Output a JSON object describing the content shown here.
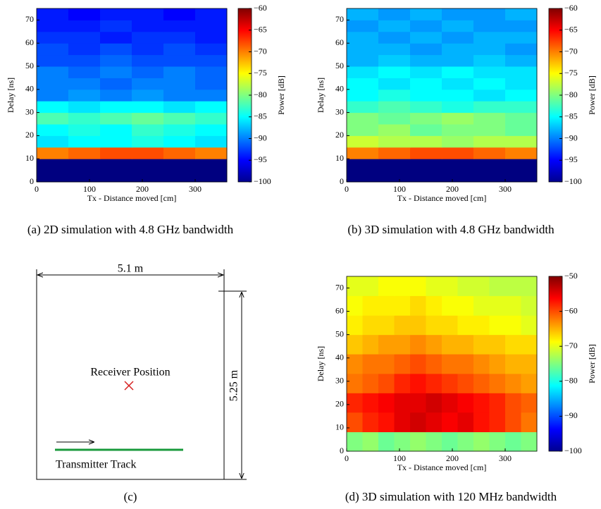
{
  "chart_data": [
    {
      "type": "heatmap",
      "caption": "(a) 2D simulation with 4.8 GHz bandwidth",
      "x_label": "Tx - Distance moved [cm]",
      "y_label": "Delay [ns]",
      "colorbar_label": "Power [dB]",
      "xlim": [
        0,
        360
      ],
      "ylim": [
        0,
        75
      ],
      "xticks": [
        0,
        100,
        200,
        300
      ],
      "yticks": [
        0,
        10,
        20,
        30,
        40,
        50,
        60,
        70
      ],
      "clim": [
        -100,
        -60
      ],
      "cticks": [
        {
          "value": -100,
          "label": "−100"
        },
        {
          "value": -95,
          "label": "−95"
        },
        {
          "value": -90,
          "label": "−90"
        },
        {
          "value": -85,
          "label": "−85"
        },
        {
          "value": -80,
          "label": "−80"
        },
        {
          "value": -75,
          "label": "−75"
        },
        {
          "value": -70,
          "label": "−70"
        },
        {
          "value": -65,
          "label": "−65"
        },
        {
          "value": -60,
          "label": "−60"
        }
      ],
      "xedges": [
        0,
        60,
        120,
        180,
        240,
        300,
        360
      ],
      "yedges": [
        0,
        5,
        10,
        15,
        20,
        25,
        30,
        35,
        40,
        45,
        50,
        55,
        60,
        65,
        70,
        75
      ],
      "z": [
        [
          -100,
          -100,
          -100,
          -100,
          -100,
          -100
        ],
        [
          -100,
          -100,
          -100,
          -100,
          -100,
          -100
        ],
        [
          -70,
          -69,
          -68,
          -68,
          -69,
          -70
        ],
        [
          -86,
          -85,
          -85,
          -84,
          -85,
          -86
        ],
        [
          -85,
          -84,
          -85,
          -83,
          -84,
          -85
        ],
        [
          -82,
          -83,
          -82,
          -81,
          -82,
          -83
        ],
        [
          -85,
          -86,
          -85,
          -85,
          -86,
          -85
        ],
        [
          -90,
          -89,
          -90,
          -89,
          -90,
          -90
        ],
        [
          -90,
          -90,
          -91,
          -90,
          -90,
          -91
        ],
        [
          -90,
          -91,
          -90,
          -91,
          -90,
          -91
        ],
        [
          -92,
          -92,
          -91,
          -92,
          -92,
          -92
        ],
        [
          -92,
          -93,
          -92,
          -93,
          -92,
          -93
        ],
        [
          -93,
          -93,
          -94,
          -93,
          -93,
          -94
        ],
        [
          -94,
          -94,
          -93,
          -94,
          -94,
          -94
        ],
        [
          -94,
          -95,
          -94,
          -94,
          -95,
          -94
        ]
      ]
    },
    {
      "type": "heatmap",
      "caption": "(b) 3D simulation with 4.8 GHz bandwidth",
      "x_label": "Tx - Distance moved [cm]",
      "y_label": "Delay [ns]",
      "colorbar_label": "Power [dB]",
      "xlim": [
        0,
        360
      ],
      "ylim": [
        0,
        75
      ],
      "xticks": [
        0,
        100,
        200,
        300
      ],
      "yticks": [
        0,
        10,
        20,
        30,
        40,
        50,
        60,
        70
      ],
      "clim": [
        -100,
        -60
      ],
      "cticks": [
        {
          "value": -100,
          "label": "−100"
        },
        {
          "value": -95,
          "label": "−95"
        },
        {
          "value": -90,
          "label": "−90"
        },
        {
          "value": -85,
          "label": "−85"
        },
        {
          "value": -80,
          "label": "−80"
        },
        {
          "value": -75,
          "label": "−75"
        },
        {
          "value": -70,
          "label": "−70"
        },
        {
          "value": -65,
          "label": "−65"
        },
        {
          "value": -60,
          "label": "−60"
        }
      ],
      "xedges": [
        0,
        60,
        120,
        180,
        240,
        300,
        360
      ],
      "yedges": [
        0,
        5,
        10,
        15,
        20,
        25,
        30,
        35,
        40,
        45,
        50,
        55,
        60,
        65,
        70,
        75
      ],
      "z": [
        [
          -100,
          -100,
          -100,
          -100,
          -100,
          -100
        ],
        [
          -100,
          -100,
          -100,
          -100,
          -100,
          -100
        ],
        [
          -70,
          -69,
          -68,
          -68,
          -69,
          -70
        ],
        [
          -77,
          -78,
          -78,
          -79,
          -78,
          -78
        ],
        [
          -80,
          -79,
          -81,
          -80,
          -80,
          -81
        ],
        [
          -80,
          -81,
          -80,
          -79,
          -80,
          -81
        ],
        [
          -83,
          -82,
          -83,
          -84,
          -83,
          -83
        ],
        [
          -85,
          -84,
          -85,
          -85,
          -86,
          -85
        ],
        [
          -85,
          -86,
          -85,
          -86,
          -85,
          -86
        ],
        [
          -86,
          -85,
          -86,
          -85,
          -86,
          -86
        ],
        [
          -88,
          -87,
          -88,
          -88,
          -87,
          -88
        ],
        [
          -88,
          -88,
          -89,
          -88,
          -88,
          -89
        ],
        [
          -88,
          -89,
          -88,
          -89,
          -88,
          -88
        ],
        [
          -89,
          -88,
          -89,
          -88,
          -89,
          -89
        ],
        [
          -88,
          -89,
          -88,
          -89,
          -89,
          -88
        ]
      ]
    },
    {
      "type": "heatmap",
      "caption": "(d) 3D simulation with 120 MHz bandwidth",
      "x_label": "Tx - Distance moved [cm]",
      "y_label": "Delay [ns]",
      "colorbar_label": "Power [dB]",
      "xlim": [
        0,
        360
      ],
      "ylim": [
        0,
        75
      ],
      "xticks": [
        0,
        100,
        200,
        300
      ],
      "yticks": [
        0,
        10,
        20,
        30,
        40,
        50,
        60,
        70
      ],
      "clim": [
        -100,
        -50
      ],
      "cticks": [
        {
          "value": -100,
          "label": "−100"
        },
        {
          "value": -90,
          "label": "−90"
        },
        {
          "value": -80,
          "label": "−80"
        },
        {
          "value": -70,
          "label": "−70"
        },
        {
          "value": -60,
          "label": "−60"
        },
        {
          "value": -50,
          "label": "−50"
        }
      ],
      "xedges": [
        0,
        30,
        60,
        90,
        120,
        150,
        180,
        210,
        240,
        270,
        300,
        330,
        360
      ],
      "yedges": [
        0,
        8.3,
        16.7,
        25,
        33.3,
        41.7,
        50,
        58.3,
        66.7,
        75
      ],
      "z": [
        [
          -75,
          -74,
          -76,
          -75,
          -74,
          -75,
          -76,
          -75,
          -74,
          -75,
          -76,
          -75
        ],
        [
          -60,
          -58,
          -57,
          -55,
          -54,
          -55,
          -56,
          -55,
          -57,
          -58,
          -60,
          -62
        ],
        [
          -58,
          -57,
          -56,
          -55,
          -55,
          -54,
          -55,
          -56,
          -57,
          -58,
          -60,
          -61
        ],
        [
          -62,
          -61,
          -60,
          -58,
          -57,
          -58,
          -59,
          -60,
          -61,
          -62,
          -63,
          -64
        ],
        [
          -63,
          -62,
          -62,
          -61,
          -60,
          -61,
          -62,
          -62,
          -63,
          -64,
          -65,
          -65
        ],
        [
          -66,
          -65,
          -64,
          -64,
          -63,
          -64,
          -65,
          -65,
          -66,
          -66,
          -67,
          -67
        ],
        [
          -68,
          -67,
          -67,
          -66,
          -66,
          -67,
          -67,
          -68,
          -68,
          -69,
          -69,
          -70
        ],
        [
          -69,
          -68,
          -68,
          -68,
          -67,
          -68,
          -69,
          -69,
          -70,
          -70,
          -70,
          -71
        ],
        [
          -70,
          -70,
          -69,
          -69,
          -69,
          -70,
          -70,
          -71,
          -71,
          -72,
          -72,
          -72
        ]
      ]
    }
  ],
  "diagram": {
    "width_label": "5.1 m",
    "height_label": "5.25 m",
    "receiver_label": "Receiver Position",
    "track_label": "Transmitter Track",
    "caption": "(c)"
  }
}
